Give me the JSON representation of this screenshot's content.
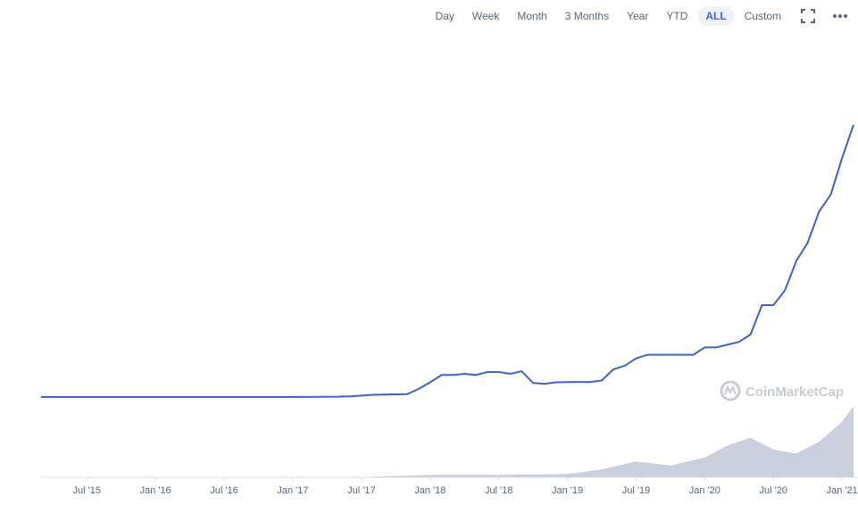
{
  "toolbar": {
    "ranges": [
      "Day",
      "Week",
      "Month",
      "3 Months",
      "Year",
      "YTD",
      "ALL",
      "Custom"
    ],
    "active_range": "ALL"
  },
  "watermark": "CoinMarketCap",
  "colors": {
    "line": "#3b63c9",
    "volume": "#c9cfdd",
    "axis": "#d9dde3",
    "accent": "#3861fb",
    "watermark": "#c8ccd3"
  },
  "icons": [
    "fullscreen-icon",
    "more-options-icon"
  ],
  "chart_data": {
    "type": "line",
    "title": "",
    "xlabel": "",
    "ylabel": "",
    "y_axis_labels": "none",
    "grid": false,
    "legend": "none",
    "xlim": [
      "2015-03",
      "2021-02"
    ],
    "x_tick_labels": [
      "Jul '15",
      "Jan '16",
      "Jul '16",
      "Jan '17",
      "Jul '17",
      "Jan '18",
      "Jul '18",
      "Jan '19",
      "Jul '19",
      "Jan '20",
      "Jul '20",
      "Jan '21"
    ],
    "series": [
      {
        "role": "price",
        "x": [
          "2015-03",
          "2015-07",
          "2016-01",
          "2016-07",
          "2017-01",
          "2017-05",
          "2017-06",
          "2017-08",
          "2017-11",
          "2017-12",
          "2018-01",
          "2018-02",
          "2018-03",
          "2018-04",
          "2018-05",
          "2018-06",
          "2018-07",
          "2018-08",
          "2018-09",
          "2018-10",
          "2018-11",
          "2018-12",
          "2019-02",
          "2019-03",
          "2019-04",
          "2019-05",
          "2019-06",
          "2019-07",
          "2019-08",
          "2019-10",
          "2019-12",
          "2020-01",
          "2020-02",
          "2020-04",
          "2020-05",
          "2020-06",
          "2020-07",
          "2020-08",
          "2020-09",
          "2020-10",
          "2020-11",
          "2020-12",
          "2021-01",
          "2021-02"
        ],
        "y": [
          0.0,
          0.0,
          0.0,
          0.0,
          0.0,
          0.1,
          0.2,
          0.6,
          0.8,
          2.2,
          4.0,
          6.0,
          6.0,
          6.3,
          6.0,
          6.8,
          6.8,
          6.3,
          7.0,
          3.8,
          3.6,
          4.0,
          4.1,
          4.1,
          4.5,
          7.5,
          8.5,
          10.5,
          11.5,
          11.5,
          11.5,
          13.5,
          13.5,
          15.0,
          17.0,
          25.0,
          25.0,
          29.0,
          37.0,
          42.0,
          50.5,
          55.0,
          65.0,
          74.0
        ],
        "unit": "relative"
      },
      {
        "role": "volume",
        "x": [
          "2015-03",
          "2017-06",
          "2018-01",
          "2018-07",
          "2019-01",
          "2019-04",
          "2019-07",
          "2019-10",
          "2020-01",
          "2020-03",
          "2020-05",
          "2020-07",
          "2020-09",
          "2020-11",
          "2021-01",
          "2021-02"
        ],
        "y": [
          0,
          0,
          0.3,
          0.3,
          0.4,
          1.0,
          2.0,
          1.5,
          2.5,
          4.0,
          5.0,
          3.5,
          3.0,
          4.5,
          7.0,
          9.0
        ],
        "unit": "relative"
      }
    ]
  }
}
